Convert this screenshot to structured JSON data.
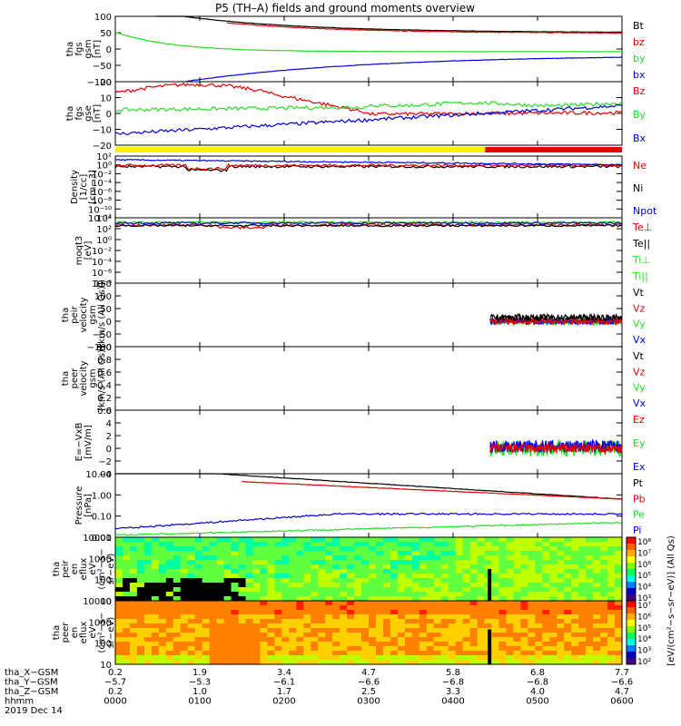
{
  "title": "P5 (TH–A) fields and ground moments overview",
  "colors": {
    "black": "#000000",
    "red": "#e00000",
    "green": "#22dd22",
    "blue": "#0000dd",
    "yellow": "#ffee00",
    "cyan": "#00ffff"
  },
  "panels": [
    {
      "id": "fgs-gsm",
      "ylabel": [
        "tha",
        "fgs",
        "gsm",
        "[nT]"
      ],
      "ticks": [
        "100",
        "50",
        "0",
        "−50",
        "−100"
      ],
      "legend": [
        [
          "Bt",
          "black"
        ],
        [
          "bz",
          "red"
        ],
        [
          "by",
          "green"
        ],
        [
          "bx",
          "blue"
        ]
      ]
    },
    {
      "id": "fgs-gse",
      "ylabel": [
        "tha",
        "fgs",
        "gse",
        "[nT]"
      ],
      "ticks": [
        "20",
        "10",
        "0",
        "−10",
        "−20"
      ],
      "legend": [
        [
          "Bz",
          "red"
        ],
        [
          "By",
          "green"
        ],
        [
          "Bx",
          "blue"
        ]
      ]
    },
    {
      "id": "density",
      "ylabel": [
        "Density",
        "[1/cc]",
        "[cm−3]"
      ],
      "ticks": [
        "10²",
        "10⁰",
        "10⁻²",
        "10⁻⁴",
        "10⁻⁶",
        "10⁻⁸",
        "10⁻¹⁰",
        "10⁻¹²"
      ],
      "legend": [
        [
          "Ne",
          "red"
        ],
        [
          "Ni",
          "black"
        ],
        [
          "Npot",
          "blue"
        ]
      ]
    },
    {
      "id": "temperature",
      "ylabel": [
        "moqt3",
        "[eV]"
      ],
      "ticks": [
        "10⁴",
        "10²",
        "10⁰",
        "10⁻²",
        "10⁻⁴",
        "10⁻⁶",
        "10⁻⁸"
      ],
      "legend": [
        [
          "Te⊥",
          "red"
        ],
        [
          "Te||",
          "black"
        ],
        [
          "Ti⊥",
          "green"
        ],
        [
          "Ti||",
          "green"
        ]
      ]
    },
    {
      "id": "peir-velocity",
      "ylabel": [
        "tha",
        "peir",
        "velocity",
        "gsm",
        "[km/s (All Qs)]"
      ],
      "ticks": [
        "150",
        "100",
        "50",
        "0",
        "−50",
        "−100"
      ],
      "legend": [
        [
          "Vt",
          "black"
        ],
        [
          "Vz",
          "red"
        ],
        [
          "Vy",
          "green"
        ],
        [
          "Vx",
          "blue"
        ]
      ]
    },
    {
      "id": "peer-velocity",
      "ylabel": [
        "tha",
        "peer",
        "velocity",
        "gsm",
        "[km/s (All Qs)]"
      ],
      "ticks": [
        "1.0",
        "0.8",
        "0.6",
        "0.4",
        "0.2",
        "0.0"
      ],
      "legend": [
        [
          "Vt",
          "black"
        ],
        [
          "Vz",
          "red"
        ],
        [
          "Vy",
          "green"
        ],
        [
          "Vx",
          "blue"
        ]
      ]
    },
    {
      "id": "efield",
      "ylabel": [
        "E=−VxB",
        "[mV/m]"
      ],
      "ticks": [
        "6",
        "4",
        "2",
        "0",
        "−2",
        "−4"
      ],
      "legend": [
        [
          "Ez",
          "red"
        ],
        [
          "Ey",
          "green"
        ],
        [
          "Ex",
          "blue"
        ]
      ]
    },
    {
      "id": "pressure",
      "ylabel": [
        "Pressure",
        "[nPa]"
      ],
      "ticks": [
        "10.00",
        "1.00",
        "0.10",
        "0.01"
      ],
      "legend": [
        [
          "Pt",
          "black"
        ],
        [
          "Pb",
          "red"
        ],
        [
          "Pe",
          "green"
        ],
        [
          "Pi",
          "blue"
        ]
      ]
    },
    {
      "id": "peir-eflux",
      "ylabel": [
        "tha",
        "peir",
        "en",
        "eflux",
        "eV",
        "(cm²−s−",
        "sr−eV)"
      ],
      "ticks": [
        "10000",
        "1000",
        "100",
        "10"
      ],
      "legend": []
    },
    {
      "id": "peer-eflux",
      "ylabel": [
        "tha",
        "peer",
        "en",
        "eflux",
        "eV",
        "(cm²−s−",
        "sr−eV)"
      ],
      "ticks": [
        "10000",
        "1000",
        "100",
        "10"
      ],
      "legend": []
    }
  ],
  "colorbar": {
    "label": "[eV/(cm²−s−sr−eV)] (All Qs)",
    "top_ticks": [
      "10⁸",
      "10⁷",
      "10⁶",
      "10⁵",
      "10⁴",
      "10³"
    ],
    "bottom_ticks": [
      "10⁷",
      "10⁶",
      "10⁵",
      "10⁴",
      "10³",
      "10²"
    ]
  },
  "footer": {
    "row_labels": [
      "tha_X−GSM",
      "tha_Y−GSM",
      "tha_Z−GSM",
      "hhmm",
      "2019 Dec 14"
    ],
    "columns": [
      [
        "0.2",
        "−5.7",
        "0.2",
        "0000"
      ],
      [
        "1.9",
        "−5.3",
        "1.0",
        "0100"
      ],
      [
        "3.4",
        "−6.1",
        "1.7",
        "0200"
      ],
      [
        "4.7",
        "−6.6",
        "2.5",
        "0300"
      ],
      [
        "5.8",
        "−6.8",
        "3.3",
        "0400"
      ],
      [
        "6.8",
        "−6.8",
        "4.0",
        "0500"
      ],
      [
        "7.7",
        "−6.6",
        "4.7",
        "0600"
      ]
    ]
  },
  "chart_data": {
    "type": "line",
    "title": "P5 (TH–A) fields and ground moments overview",
    "date": "2019 Dec 14",
    "x_time_range": [
      "0000",
      "0600"
    ],
    "x": [
      "0000",
      "0100",
      "0200",
      "0300",
      "0400",
      "0500",
      "0600"
    ],
    "orbit": {
      "X_GSM": [
        0.2,
        1.9,
        3.4,
        4.7,
        5.8,
        6.8,
        7.7
      ],
      "Y_GSM": [
        -5.7,
        -5.3,
        -6.1,
        -6.6,
        -6.8,
        -6.8,
        -6.6
      ],
      "Z_GSM": [
        0.2,
        1.0,
        1.7,
        2.5,
        3.3,
        4.0,
        4.7
      ]
    },
    "series": [
      {
        "name": "Bt",
        "values": [
          135,
          95,
          72,
          60,
          52,
          50,
          50
        ]
      },
      {
        "name": "bz",
        "values": [
          120,
          90,
          70,
          58,
          50,
          48,
          48
        ]
      },
      {
        "name": "by",
        "values": [
          52,
          -5,
          -10,
          -8,
          -5,
          -3,
          -2
        ]
      },
      {
        "name": "bx",
        "values": [
          -140,
          -95,
          -60,
          -40,
          -30,
          -22,
          -18
        ]
      },
      {
        "name": "Bz",
        "values": [
          12,
          15,
          6,
          -2,
          -4,
          -2,
          -1
        ]
      },
      {
        "name": "By",
        "values": [
          -1,
          0,
          2,
          4,
          5,
          5,
          6
        ]
      },
      {
        "name": "Bx",
        "values": [
          -16,
          -10,
          -5,
          -3,
          -1,
          0,
          1
        ]
      }
    ]
  }
}
